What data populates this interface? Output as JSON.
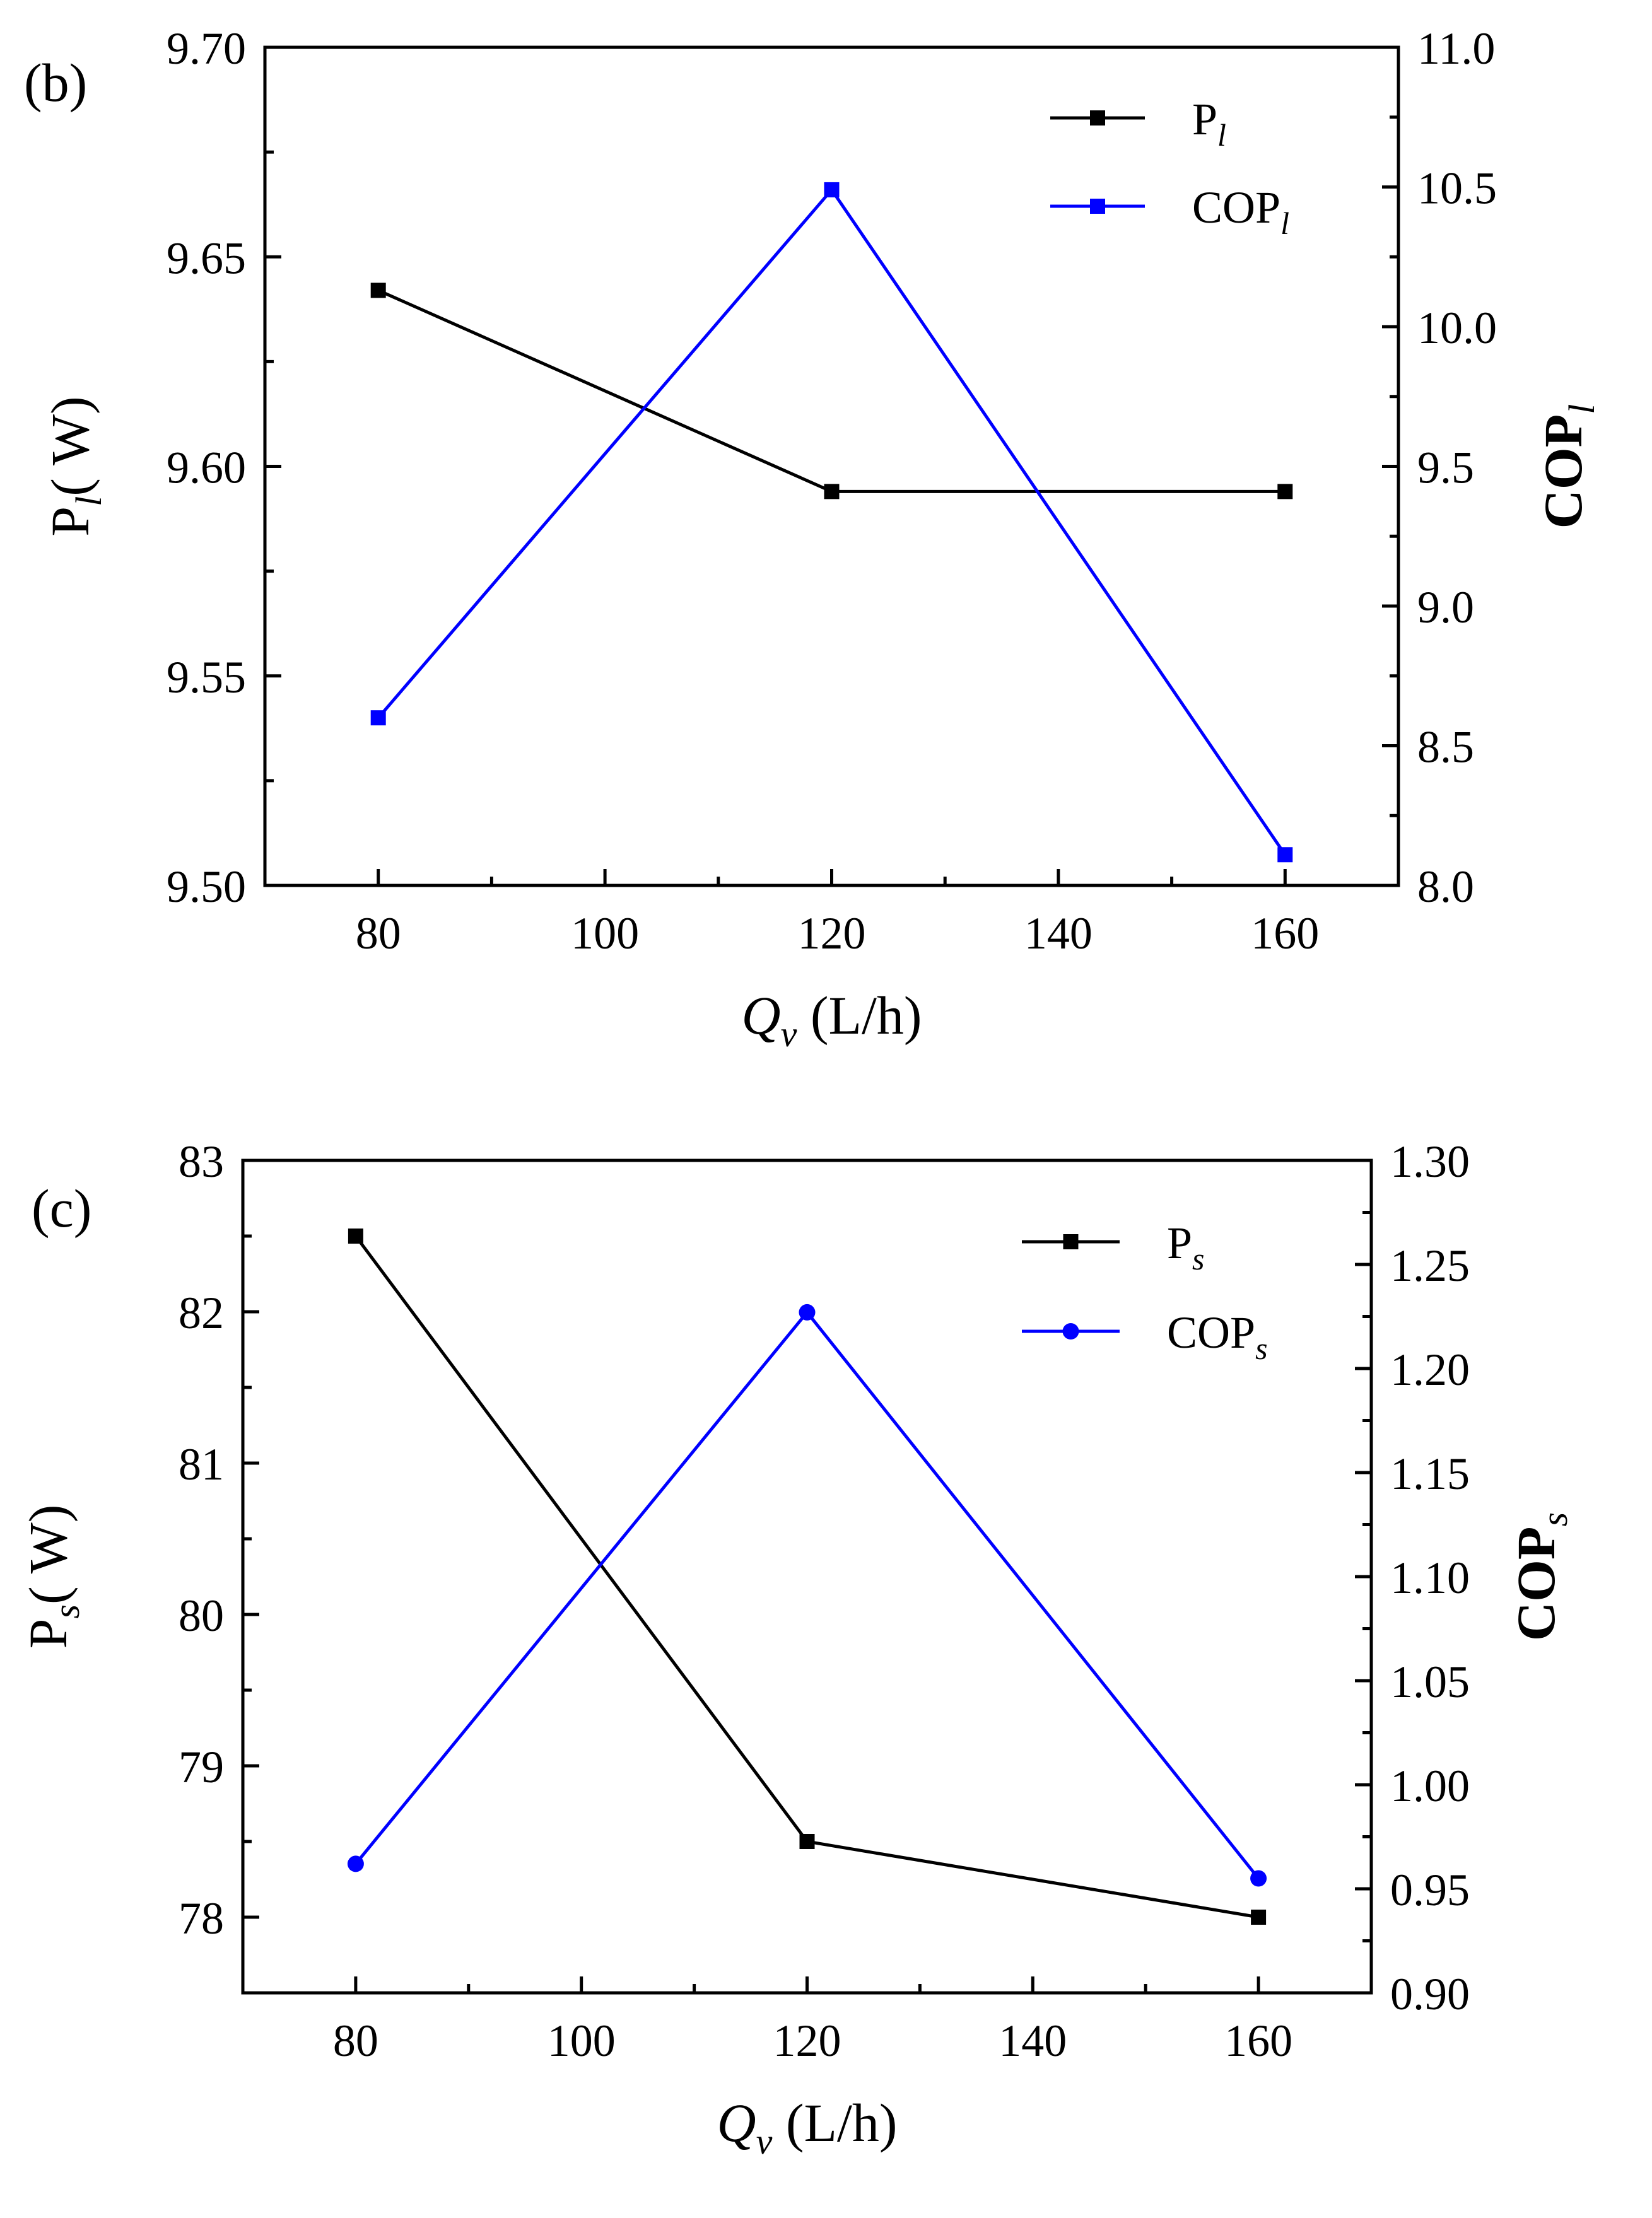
{
  "colors": {
    "series_black": "#000000",
    "series_blue": "#0000ff",
    "axis": "#000000",
    "background": "#ffffff"
  },
  "chart_data": [
    {
      "type": "line",
      "panel_label": "(b)",
      "x": [
        80,
        120,
        160
      ],
      "xlim": [
        70,
        170
      ],
      "xticks": [
        "80",
        "100",
        "120",
        "140",
        "160"
      ],
      "xlabel": {
        "symbol": "Q",
        "sub": "v",
        "unit": " (L/h)"
      },
      "y_left": {
        "lim": [
          9.5,
          9.7
        ],
        "ticks": [
          "9.50",
          "9.55",
          "9.60",
          "9.65",
          "9.70"
        ],
        "label": {
          "main": "P",
          "sub": "l",
          "unit": "( W)"
        }
      },
      "y_right": {
        "lim": [
          8.0,
          11.0
        ],
        "ticks": [
          "8.0",
          "8.5",
          "9.0",
          "9.5",
          "10.0",
          "10.5",
          "11.0"
        ],
        "label": {
          "main": "COP",
          "sub": "l"
        }
      },
      "series": [
        {
          "name": "P",
          "name_sub": "l",
          "axis": "left",
          "marker": "square",
          "color": "#000000",
          "values": [
            9.642,
            9.594,
            9.594
          ]
        },
        {
          "name": "COP",
          "name_sub": "l",
          "axis": "right",
          "marker": "square",
          "color": "#0000ff",
          "values": [
            8.6,
            10.49,
            8.11
          ]
        }
      ],
      "legend": "top-right",
      "grid": false
    },
    {
      "type": "line",
      "panel_label": "(c)",
      "x": [
        80,
        120,
        160
      ],
      "xlim": [
        70,
        170
      ],
      "xticks": [
        "80",
        "100",
        "120",
        "140",
        "160"
      ],
      "xlabel": {
        "symbol": "Q",
        "sub": "v",
        "unit": " (L/h)"
      },
      "y_left": {
        "lim": [
          77.5,
          83.0
        ],
        "ticks": [
          "78",
          "79",
          "80",
          "81",
          "82",
          "83"
        ],
        "label": {
          "main": "P",
          "sub": "s",
          "unit": "( W)"
        }
      },
      "y_right": {
        "lim": [
          0.9,
          1.3
        ],
        "ticks": [
          "0.90",
          "0.95",
          "1.00",
          "1.05",
          "1.10",
          "1.15",
          "1.20",
          "1.25",
          "1.30"
        ],
        "label": {
          "main": "COP",
          "sub": "s"
        }
      },
      "series": [
        {
          "name": "P",
          "name_sub": "s",
          "axis": "left",
          "marker": "square",
          "color": "#000000",
          "values": [
            82.5,
            78.5,
            78.0
          ]
        },
        {
          "name": "COP",
          "name_sub": "s",
          "axis": "right",
          "marker": "circle",
          "color": "#0000ff",
          "values": [
            0.962,
            1.227,
            0.955
          ]
        }
      ],
      "legend": "top-right",
      "grid": false
    }
  ]
}
